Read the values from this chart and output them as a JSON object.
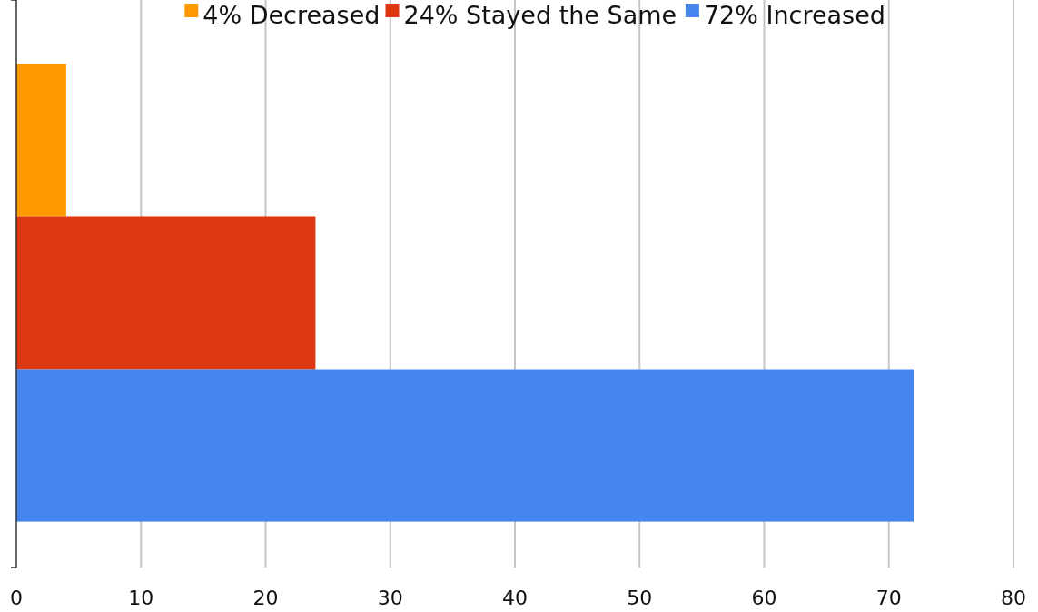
{
  "chart_data": {
    "type": "bar",
    "orientation": "horizontal",
    "categories": [
      null
    ],
    "series": [
      {
        "name": "4% Decreased",
        "color": "#ff9900",
        "values": [
          4
        ]
      },
      {
        "name": "24% Stayed the Same",
        "color": "#dc3912",
        "values": [
          24
        ]
      },
      {
        "name": "72% Increased",
        "color": "#4684ee",
        "values": [
          72
        ]
      }
    ],
    "xlim": [
      0,
      80
    ],
    "xticks": [
      0,
      10,
      20,
      30,
      40,
      50,
      60,
      70,
      80
    ],
    "grid": "x",
    "legend": "top",
    "tick_labels": "x"
  }
}
